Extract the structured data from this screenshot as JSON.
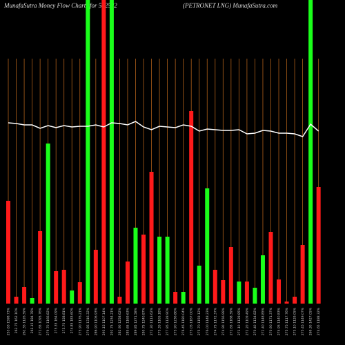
{
  "chart_data": {
    "type": "bar",
    "title": "MunafaSutra  Money Flow  Charts for 532522",
    "subtitle": "(PETRONET LNG) MunafaSutra.com",
    "categories": [
      "253.63 1598.73%",
      "262.75 162.10%",
      "261.35 1126.39%",
      "261.15 184.78%",
      "271.65 1095.76%",
      "279.70 1166.82%",
      "275.35 164.09%",
      "275.70 158.81%",
      "274.85 183.60%",
      "275.90 1176.21%",
      "279.85 1316.32%",
      "286.90 1106.93%",
      "293.15 1107.14%",
      "292.75 1234.21%",
      "282.90 1258.62%",
      "285.65 1169.63%",
      "289.85 1271.58%",
      "290.75 1240.87%",
      "272.30 1113.62%",
      "275.35 1165.18%",
      "277.85 1128.90%",
      "275.90 1236.86%",
      "276.45 1180.04%",
      "275.05 1167.00%",
      "275.70 1159.12%",
      "276.00 1148.23%",
      "274.75 1172.37%",
      "274.90 1156.99%",
      "271.65 1168.39%",
      "271.10 1128.85%",
      "272.20 1109.49%",
      "270.40 1134.82%",
      "272.40 1148.85%",
      "270.90 1171.37%",
      "274.95 1140.83%",
      "275.75 1117.76%",
      "273.10 1129.05%",
      "275.45 1149.07%",
      "269.30 1427.05%",
      "274.65 1188.32%"
    ],
    "values": [
      149,
      10,
      24,
      8,
      105,
      232,
      47,
      49,
      19,
      31,
      440,
      78,
      440,
      440,
      10,
      61,
      110,
      100,
      191,
      97,
      97,
      17,
      17,
      279,
      55,
      167,
      49,
      34,
      82,
      32,
      32,
      23,
      70,
      104,
      35,
      3,
      10,
      85,
      440,
      169
    ],
    "colors": [
      "#ff1a1a",
      "#ff1a1a",
      "#ff1a1a",
      "#1aff1a",
      "#ff1a1a",
      "#1aff1a",
      "#ff1a1a",
      "#ff1a1a",
      "#1aff1a",
      "#ff1a1a",
      "#1aff1a",
      "#ff1a1a",
      "#ff1a1a",
      "#1aff1a",
      "#ff1a1a",
      "#ff1a1a",
      "#1aff1a",
      "#ff1a1a",
      "#ff1a1a",
      "#1aff1a",
      "#1aff1a",
      "#ff1a1a",
      "#1aff1a",
      "#ff1a1a",
      "#1aff1a",
      "#1aff1a",
      "#ff1a1a",
      "#ff1a1a",
      "#ff1a1a",
      "#1aff1a",
      "#ff1a1a",
      "#1aff1a",
      "#1aff1a",
      "#ff1a1a",
      "#ff1a1a",
      "#ff1a1a",
      "#ff1a1a",
      "#ff1a1a",
      "#1aff1a",
      "#ff1a1a"
    ],
    "line_values": [
      262,
      261,
      259,
      259,
      254,
      258,
      255,
      258,
      256,
      257,
      257,
      259,
      256,
      262,
      261,
      259,
      264,
      256,
      252,
      257,
      256,
      255,
      259,
      257,
      250,
      253,
      252,
      251,
      251,
      252,
      246,
      247,
      251,
      250,
      247,
      247,
      246,
      242,
      260,
      250
    ],
    "line_color": "#ffffff",
    "grid_color": "#b0601a",
    "ylim": [
      0,
      440
    ]
  }
}
